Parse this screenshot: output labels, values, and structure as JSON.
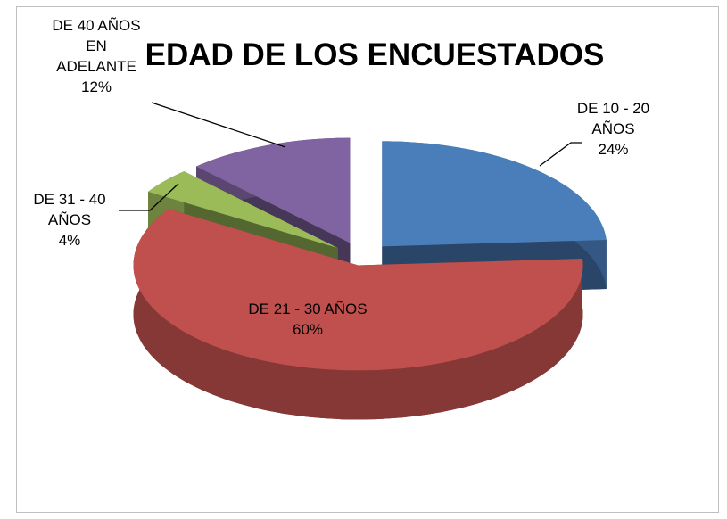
{
  "chart_data": {
    "type": "pie3d",
    "title": "EDAD DE LOS ENCUESTADOS",
    "categories": [
      "DE  10 - 20 AÑOS",
      "DE 21 - 30 AÑOS",
      "DE 31 - 40 AÑOS",
      "DE 40 AÑOS EN ADELANTE"
    ],
    "values": [
      24,
      60,
      4,
      12
    ],
    "value_labels": [
      "24%",
      "60%",
      "4%",
      "12%"
    ],
    "colors": [
      "#4a7ebb",
      "#c0504d",
      "#9bbb59",
      "#8064a2"
    ]
  }
}
